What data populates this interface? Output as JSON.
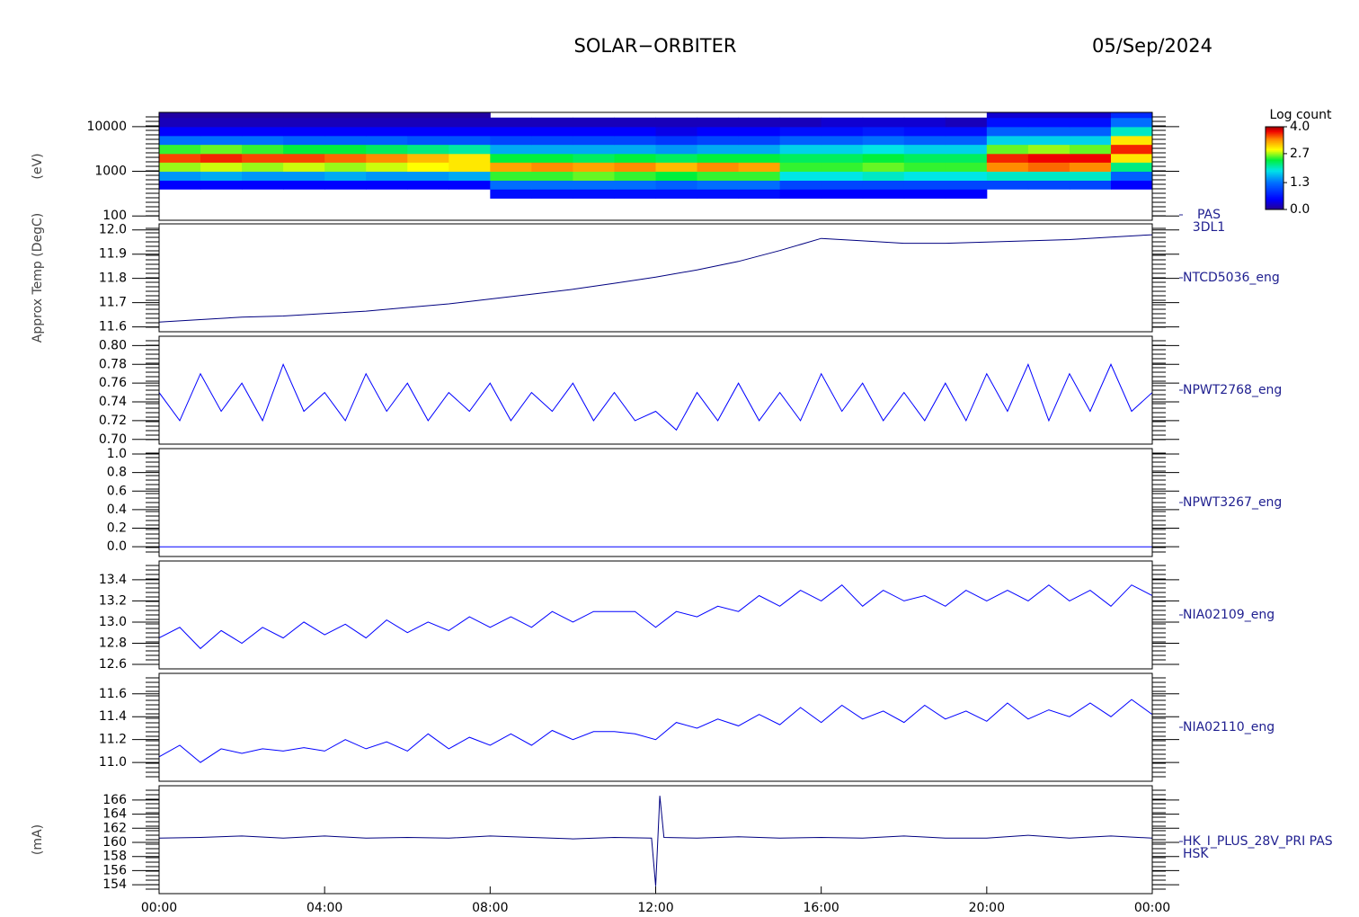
{
  "header": {
    "title": "SOLAR−ORBITER",
    "date": "05/Sep/2024"
  },
  "chart_data": [
    {
      "type": "heatmap",
      "label": [
        "PAS",
        "3DL1"
      ],
      "ylabel": "(eV)",
      "log_y": true,
      "ylim": [
        80,
        20900
      ],
      "yticks": [
        100,
        1000,
        10000
      ],
      "x": [
        0,
        1,
        2,
        3,
        4,
        5,
        6,
        7,
        8,
        9,
        10,
        11,
        12,
        13,
        14,
        15,
        16,
        17,
        18,
        19,
        20,
        21,
        22,
        23,
        24
      ],
      "bins": [
        250,
        400,
        630,
        1000,
        1600,
        2500,
        4000,
        6300,
        10000,
        16000,
        20900
      ],
      "colorbar": {
        "title": "Log count",
        "zlim": [
          0,
          4
        ],
        "ticks": [
          {
            "value": 0,
            "label": "0.0"
          },
          1.3,
          2.7,
          {
            "value": 4,
            "label": "4.0"
          }
        ]
      },
      "values": [
        [
          null,
          null,
          null,
          null,
          null,
          null,
          null,
          null,
          0.6,
          0.6,
          0.6,
          0.6,
          0.6,
          0.6,
          0.6,
          0.5,
          0.5,
          0.5,
          0.5,
          0.5,
          null,
          null,
          null,
          null
        ],
        [
          0.5,
          0.5,
          0.5,
          0.5,
          0.5,
          0.5,
          0.5,
          0.5,
          1.3,
          1.3,
          1.3,
          1.3,
          1.2,
          1.3,
          1.3,
          1.0,
          1.0,
          1.0,
          1.0,
          1.0,
          1.0,
          1.0,
          1.0,
          0.5
        ],
        [
          1.5,
          1.6,
          1.5,
          1.5,
          1.6,
          1.5,
          1.5,
          1.6,
          2.5,
          2.5,
          2.6,
          2.5,
          2.4,
          2.5,
          2.5,
          1.9,
          1.9,
          2.0,
          1.9,
          1.9,
          2.0,
          2.0,
          2.0,
          1.2
        ],
        [
          2.7,
          2.8,
          2.7,
          2.8,
          2.7,
          2.8,
          2.9,
          3.0,
          3.3,
          3.4,
          3.3,
          3.4,
          3.2,
          3.4,
          3.3,
          2.5,
          2.5,
          2.6,
          2.5,
          2.5,
          3.4,
          3.5,
          3.4,
          2.2
        ],
        [
          3.6,
          3.7,
          3.6,
          3.6,
          3.5,
          3.4,
          3.2,
          3.0,
          2.4,
          2.4,
          2.3,
          2.4,
          2.3,
          2.4,
          2.4,
          2.3,
          2.3,
          2.4,
          2.3,
          2.3,
          3.7,
          3.8,
          3.8,
          3.0
        ],
        [
          2.5,
          2.6,
          2.5,
          2.4,
          2.4,
          2.3,
          2.2,
          2.1,
          1.6,
          1.6,
          1.6,
          1.6,
          1.5,
          1.6,
          1.6,
          1.8,
          1.8,
          1.9,
          1.8,
          1.8,
          2.6,
          2.7,
          2.6,
          3.7
        ],
        [
          1.3,
          1.3,
          1.3,
          1.2,
          1.2,
          1.2,
          1.1,
          1.1,
          1.0,
          1.0,
          1.0,
          1.0,
          0.9,
          1.0,
          1.0,
          1.2,
          1.2,
          1.3,
          1.2,
          1.2,
          1.8,
          1.8,
          1.8,
          3.0
        ],
        [
          0.5,
          0.5,
          0.5,
          0.5,
          0.5,
          0.5,
          0.5,
          0.5,
          0.5,
          0.5,
          0.5,
          0.5,
          0.4,
          0.5,
          0.5,
          0.6,
          0.6,
          0.7,
          0.6,
          0.6,
          1.2,
          1.2,
          1.2,
          2.0
        ],
        [
          0.2,
          0.2,
          0.2,
          0.2,
          0.2,
          0.2,
          0.2,
          0.2,
          0.2,
          0.2,
          0.2,
          0.2,
          0.2,
          0.2,
          0.2,
          0.2,
          0.3,
          0.3,
          0.3,
          0.2,
          0.6,
          0.6,
          0.6,
          1.3
        ],
        [
          0.1,
          0.1,
          0.1,
          0.1,
          0.1,
          0.1,
          0.1,
          0.1,
          null,
          null,
          null,
          null,
          null,
          null,
          null,
          null,
          null,
          null,
          null,
          null,
          0.3,
          0.3,
          0.3,
          0.8
        ]
      ]
    },
    {
      "type": "line",
      "label": [
        "NTCD5036_eng"
      ],
      "ylabel": "Approx Temp (DegC)",
      "color": "#000080",
      "ylim": [
        11.58,
        12.025
      ],
      "yticks": [
        11.6,
        11.7,
        11.8,
        11.9,
        {
          "value": 12,
          "label": "12.0"
        }
      ],
      "x": [
        0,
        1,
        2,
        3,
        4,
        5,
        6,
        7,
        8,
        9,
        10,
        11,
        12,
        13,
        14,
        15,
        16,
        17,
        18,
        19,
        20,
        21,
        22,
        23,
        24
      ],
      "values": [
        11.62,
        11.63,
        11.64,
        11.645,
        11.655,
        11.665,
        11.68,
        11.695,
        11.715,
        11.735,
        11.755,
        11.78,
        11.805,
        11.835,
        11.87,
        11.915,
        11.965,
        11.955,
        11.945,
        11.945,
        11.95,
        11.955,
        11.96,
        11.97,
        11.98
      ]
    },
    {
      "type": "line",
      "label": [
        "NPWT2768_eng"
      ],
      "color": "#0000ff",
      "ylim": [
        0.695,
        0.81
      ],
      "yticks": [
        {
          "value": 0.7,
          "label": "0.70"
        },
        0.72,
        0.74,
        0.76,
        0.78,
        {
          "value": 0.8,
          "label": "0.80"
        }
      ],
      "x": [
        0,
        0.5,
        1,
        1.5,
        2,
        2.5,
        3,
        3.5,
        4,
        4.5,
        5,
        5.5,
        6,
        6.5,
        7,
        7.5,
        8,
        8.5,
        9,
        9.5,
        10,
        10.5,
        11,
        11.5,
        12,
        12.5,
        13,
        13.5,
        14,
        14.5,
        15,
        15.5,
        16,
        16.5,
        17,
        17.5,
        18,
        18.5,
        19,
        19.5,
        20,
        20.5,
        21,
        21.5,
        22,
        22.5,
        23,
        23.5,
        24
      ],
      "values": [
        0.75,
        0.72,
        0.77,
        0.73,
        0.76,
        0.72,
        0.78,
        0.73,
        0.75,
        0.72,
        0.77,
        0.73,
        0.76,
        0.72,
        0.75,
        0.73,
        0.76,
        0.72,
        0.75,
        0.73,
        0.76,
        0.72,
        0.75,
        0.72,
        0.73,
        0.71,
        0.75,
        0.72,
        0.76,
        0.72,
        0.75,
        0.72,
        0.77,
        0.73,
        0.76,
        0.72,
        0.75,
        0.72,
        0.76,
        0.72,
        0.77,
        0.73,
        0.78,
        0.72,
        0.77,
        0.73,
        0.78,
        0.73,
        0.75
      ]
    },
    {
      "type": "line",
      "label": [
        "NPWT3267_eng"
      ],
      "color": "#0000ff",
      "ylim": [
        -0.105,
        1.058
      ],
      "yticks": [
        {
          "value": 0,
          "label": "0.0"
        },
        0.2,
        0.4,
        0.6,
        0.8,
        {
          "value": 1,
          "label": "1.0"
        }
      ],
      "x": [
        0,
        1,
        2,
        3,
        4,
        5,
        6,
        7,
        8,
        9,
        10,
        11,
        12,
        13,
        14,
        15,
        16,
        17,
        18,
        19,
        20,
        21,
        22,
        23,
        24
      ],
      "values": [
        0,
        0,
        0,
        0,
        0,
        0,
        0,
        0,
        0,
        0,
        0,
        0,
        0,
        0,
        0,
        0,
        0,
        0,
        0,
        0,
        0,
        0,
        0,
        0,
        0
      ]
    },
    {
      "type": "line",
      "label": [
        "NIA02109_eng"
      ],
      "color": "#0000ff",
      "ylim": [
        12.558,
        13.577
      ],
      "yticks": [
        12.6,
        12.8,
        {
          "value": 13,
          "label": "13.0"
        },
        13.2,
        13.4
      ],
      "x": [
        0,
        0.5,
        1,
        1.5,
        2,
        2.5,
        3,
        3.5,
        4,
        4.5,
        5,
        5.5,
        6,
        6.5,
        7,
        7.5,
        8,
        8.5,
        9,
        9.5,
        10,
        10.5,
        11,
        11.5,
        12,
        12.5,
        13,
        13.5,
        14,
        14.5,
        15,
        15.5,
        16,
        16.5,
        17,
        17.5,
        18,
        18.5,
        19,
        19.5,
        20,
        20.5,
        21,
        21.5,
        22,
        22.5,
        23,
        23.5,
        24
      ],
      "values": [
        12.85,
        12.95,
        12.75,
        12.92,
        12.8,
        12.95,
        12.85,
        13.0,
        12.88,
        12.98,
        12.85,
        13.02,
        12.9,
        13.0,
        12.92,
        13.05,
        12.95,
        13.05,
        12.95,
        13.1,
        13.0,
        13.1,
        13.1,
        13.1,
        12.95,
        13.1,
        13.05,
        13.15,
        13.1,
        13.25,
        13.15,
        13.3,
        13.2,
        13.35,
        13.15,
        13.3,
        13.2,
        13.25,
        13.15,
        13.3,
        13.2,
        13.3,
        13.2,
        13.35,
        13.2,
        13.3,
        13.15,
        13.35,
        13.25
      ]
    },
    {
      "type": "line",
      "label": [
        "NIA02110_eng"
      ],
      "color": "#0000ff",
      "ylim": [
        10.836,
        11.779
      ],
      "yticks": [
        {
          "value": 11,
          "label": "11.0"
        },
        11.2,
        11.4,
        11.6
      ],
      "x": [
        0,
        0.5,
        1,
        1.5,
        2,
        2.5,
        3,
        3.5,
        4,
        4.5,
        5,
        5.5,
        6,
        6.5,
        7,
        7.5,
        8,
        8.5,
        9,
        9.5,
        10,
        10.5,
        11,
        11.5,
        12,
        12.5,
        13,
        13.5,
        14,
        14.5,
        15,
        15.5,
        16,
        16.5,
        17,
        17.5,
        18,
        18.5,
        19,
        19.5,
        20,
        20.5,
        21,
        21.5,
        22,
        22.5,
        23,
        23.5,
        24
      ],
      "values": [
        11.05,
        11.15,
        11.0,
        11.12,
        11.08,
        11.12,
        11.1,
        11.13,
        11.1,
        11.2,
        11.12,
        11.18,
        11.1,
        11.25,
        11.12,
        11.22,
        11.15,
        11.25,
        11.15,
        11.28,
        11.2,
        11.27,
        11.27,
        11.25,
        11.2,
        11.35,
        11.3,
        11.38,
        11.32,
        11.42,
        11.33,
        11.48,
        11.35,
        11.5,
        11.38,
        11.45,
        11.35,
        11.5,
        11.38,
        11.45,
        11.36,
        11.52,
        11.38,
        11.46,
        11.4,
        11.52,
        11.4,
        11.55,
        11.42
      ]
    },
    {
      "type": "line",
      "label": [
        "HK_I_PLUS_28V_PRI PAS",
        "HSK"
      ],
      "ylabel": "(mA)",
      "color": "#000080",
      "ylim": [
        152.74,
        168.02
      ],
      "yticks": [
        154,
        156,
        158,
        160,
        162,
        164,
        166
      ],
      "xlim": [
        0,
        24
      ],
      "xticks": [
        {
          "value": 0,
          "label": "00:00"
        },
        {
          "value": 4,
          "label": "04:00"
        },
        {
          "value": 8,
          "label": "08:00"
        },
        {
          "value": 12,
          "label": "12:00"
        },
        {
          "value": 16,
          "label": "16:00"
        },
        {
          "value": 20,
          "label": "20:00"
        },
        {
          "value": 24,
          "label": "00:00"
        }
      ],
      "x": [
        0,
        1,
        2,
        3,
        4,
        5,
        6,
        7,
        8,
        9,
        10,
        11,
        11.9,
        12,
        12.1,
        12.2,
        13,
        14,
        15,
        16,
        17,
        18,
        19,
        20,
        21,
        22,
        23,
        24
      ],
      "values": [
        160.6,
        160.7,
        160.9,
        160.6,
        160.9,
        160.6,
        160.7,
        160.6,
        160.9,
        160.7,
        160.5,
        160.7,
        160.6,
        153.8,
        166.6,
        160.7,
        160.6,
        160.8,
        160.6,
        160.7,
        160.6,
        160.9,
        160.6,
        160.6,
        161.0,
        160.6,
        160.9,
        160.6
      ]
    }
  ]
}
